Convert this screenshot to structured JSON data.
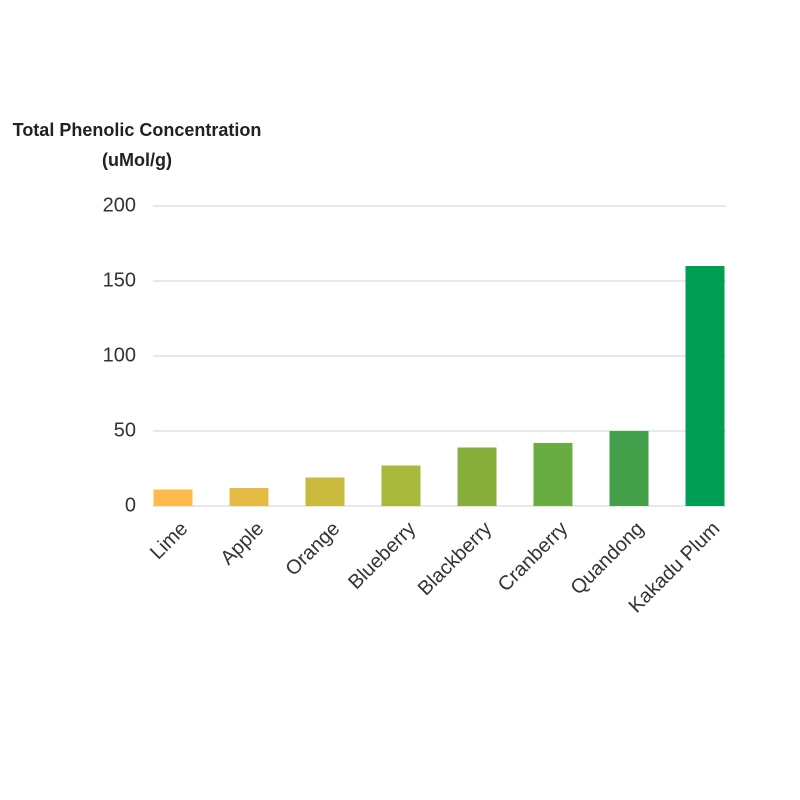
{
  "chart_data": {
    "type": "bar",
    "title": "Total Phenolic Concentration (uMol/g)",
    "categories": [
      "Lime",
      "Apple",
      "Orange",
      "Blueberry",
      "Blackberry",
      "Cranberry",
      "Quandong",
      "Kakadu Plum"
    ],
    "values": [
      11,
      12,
      19,
      27,
      39,
      42,
      50,
      160
    ],
    "colors": [
      "#fdbb4e",
      "#e6bb45",
      "#c9b93c",
      "#a8b83a",
      "#87ad3a",
      "#68ad42",
      "#43a04b",
      "#009e54"
    ],
    "ylim": [
      0,
      200
    ],
    "yticks": [
      0,
      50,
      100,
      150,
      200
    ],
    "grid": true
  }
}
